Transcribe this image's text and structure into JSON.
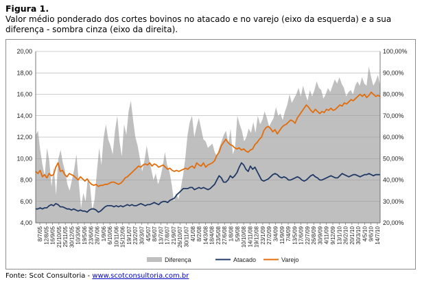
{
  "figure": {
    "title": "Figura 1.",
    "caption": "Valor médio ponderado dos cortes bovinos no atacado e no varejo (eixo da esquerda) e a sua diferença - sombra cinza (eixo da direita).",
    "source_prefix": "Fonte: Scot Consultoria - ",
    "source_link": "www.scotconsultoria.com.br"
  },
  "chart_data": {
    "type": "line",
    "y_left": {
      "ylim": [
        4,
        20
      ],
      "ticks": [
        "4,00",
        "6,00",
        "8,00",
        "10,00",
        "12,00",
        "14,00",
        "16,00",
        "18,00",
        "20,00"
      ]
    },
    "y_right": {
      "ylim": [
        20,
        100
      ],
      "ticks": [
        "20,00%",
        "30,00%",
        "40,00%",
        "50,00%",
        "60,00%",
        "70,00%",
        "80,00%",
        "90,00%",
        "100,00%"
      ]
    },
    "x_ticks": [
      "8/7/05",
      "12/8/05",
      "16/9/05",
      "21/10/05",
      "25/11/05",
      "30/12/05",
      "10/3/06",
      "19/5/06",
      "23/6/06",
      "28/7/06",
      "1/9/06",
      "6/10/06",
      "10/11/06",
      "15/12/06",
      "19/1/07",
      "23/2/07",
      "30/3/07",
      "4/5/07",
      "8/6/07",
      "13/7/07",
      "17/8/07",
      "21/9/07",
      "26/10/07",
      "30/11/07",
      "4/1/08",
      "8/2/08",
      "14/3/08",
      "18/4/08",
      "23/5/08",
      "27/6/08",
      "1/8/08",
      "5/9/08",
      "10/10/08",
      "14/11/08",
      "19/12/08",
      "23/1/09",
      "27/2/09",
      "3/4/09",
      "11/9/09",
      "7/4/09",
      "13/5/09",
      "17/6/09",
      "22/7/09",
      "26/8/09",
      "30/9/09",
      "4/11/09",
      "9/12/09",
      "13/1/10",
      "26/2/10",
      "20/1/10",
      "30/3/10",
      "4/5/10",
      "9/6/10",
      "14/7/10"
    ],
    "series": [
      {
        "name": "Diferença",
        "axis": "right",
        "color": "#bfbfbf",
        "style": "area",
        "values": [
          61,
          63,
          54,
          47,
          42,
          55,
          49,
          37,
          46,
          33,
          50,
          54,
          48,
          44,
          38,
          35,
          40,
          45,
          52,
          39,
          27,
          34,
          30,
          41,
          37,
          26,
          31,
          44,
          55,
          47,
          60,
          66,
          59,
          56,
          52,
          63,
          70,
          58,
          51,
          66,
          61,
          72,
          77,
          68,
          60,
          56,
          50,
          44,
          49,
          56,
          50,
          45,
          40,
          43,
          38,
          41,
          46,
          53,
          47,
          44,
          38,
          30,
          34,
          31,
          36,
          42,
          50,
          61,
          67,
          70,
          60,
          65,
          69,
          64,
          59,
          58,
          55,
          56,
          57,
          53,
          51,
          55,
          58,
          61,
          63,
          57,
          64,
          52,
          55,
          70,
          66,
          63,
          58,
          60,
          64,
          62,
          67,
          62,
          70,
          66,
          68,
          72,
          69,
          65,
          67,
          69,
          74,
          70,
          71,
          68,
          72,
          75,
          80,
          76,
          78,
          80,
          83,
          79,
          84,
          80,
          77,
          82,
          79,
          82,
          86,
          83,
          82,
          78,
          80,
          83,
          81,
          84,
          87,
          85,
          88,
          85,
          83,
          79,
          81,
          82,
          80,
          84,
          86,
          84,
          88,
          85,
          84,
          93,
          88,
          84,
          86,
          89,
          84
        ]
      },
      {
        "name": "Atacado",
        "axis": "left",
        "color": "#1f3864",
        "style": "line",
        "values": [
          5.3,
          5.3,
          5.4,
          5.3,
          5.4,
          5.4,
          5.6,
          5.7,
          5.6,
          5.8,
          5.7,
          5.5,
          5.5,
          5.4,
          5.3,
          5.3,
          5.2,
          5.3,
          5.2,
          5.1,
          5.2,
          5.1,
          5.1,
          5.0,
          5.2,
          5.3,
          5.3,
          5.2,
          5.0,
          5.1,
          5.3,
          5.5,
          5.6,
          5.6,
          5.6,
          5.5,
          5.6,
          5.5,
          5.6,
          5.5,
          5.6,
          5.7,
          5.6,
          5.7,
          5.6,
          5.6,
          5.7,
          5.8,
          5.7,
          5.6,
          5.7,
          5.7,
          5.8,
          5.9,
          5.8,
          5.7,
          5.9,
          6.0,
          6.0,
          5.9,
          6.1,
          6.2,
          6.3,
          6.6,
          6.8,
          7.0,
          7.2,
          7.2,
          7.2,
          7.3,
          7.3,
          7.1,
          7.2,
          7.3,
          7.2,
          7.3,
          7.2,
          7.1,
          7.2,
          7.4,
          7.6,
          8.0,
          8.4,
          8.2,
          7.8,
          7.8,
          8.0,
          8.4,
          8.2,
          8.4,
          8.7,
          9.2,
          9.6,
          9.4,
          9.0,
          8.8,
          9.3,
          9.0,
          9.2,
          8.8,
          8.4,
          8.0,
          7.9,
          8.0,
          8.1,
          8.3,
          8.5,
          8.6,
          8.5,
          8.3,
          8.2,
          8.3,
          8.2,
          8.0,
          8.0,
          8.1,
          8.2,
          8.3,
          8.2,
          8.0,
          7.9,
          8.0,
          8.2,
          8.4,
          8.5,
          8.3,
          8.2,
          8.0,
          8.0,
          8.1,
          8.2,
          8.3,
          8.4,
          8.3,
          8.2,
          8.2,
          8.4,
          8.6,
          8.5,
          8.4,
          8.3,
          8.4,
          8.5,
          8.5,
          8.4,
          8.3,
          8.4,
          8.5,
          8.5,
          8.6,
          8.5,
          8.4,
          8.5,
          8.5,
          8.5
        ]
      },
      {
        "name": "Varejo",
        "axis": "left",
        "color": "#e36c0a",
        "style": "line",
        "values": [
          8.8,
          8.6,
          8.9,
          8.3,
          8.5,
          8.2,
          8.6,
          8.4,
          8.5,
          9.2,
          9.6,
          8.8,
          8.9,
          8.5,
          8.3,
          8.6,
          8.5,
          8.4,
          8.2,
          8.0,
          8.3,
          8.1,
          7.9,
          8.1,
          7.8,
          7.6,
          7.5,
          7.6,
          7.4,
          7.5,
          7.5,
          7.6,
          7.6,
          7.7,
          7.8,
          7.8,
          7.7,
          7.6,
          7.7,
          7.9,
          8.2,
          8.3,
          8.5,
          8.7,
          8.9,
          9.1,
          9.3,
          9.2,
          9.4,
          9.5,
          9.4,
          9.6,
          9.3,
          9.5,
          9.4,
          9.2,
          9.3,
          9.4,
          9.2,
          9.0,
          9.1,
          8.9,
          8.8,
          8.9,
          8.8,
          8.9,
          9.0,
          9.1,
          9.0,
          9.2,
          9.3,
          9.1,
          9.6,
          9.4,
          9.3,
          9.6,
          9.2,
          9.4,
          9.5,
          9.6,
          9.8,
          10.3,
          10.6,
          11.2,
          11.5,
          11.8,
          11.5,
          11.3,
          11.2,
          11.0,
          10.9,
          11.0,
          10.8,
          10.9,
          10.7,
          10.6,
          10.8,
          10.9,
          11.3,
          11.5,
          11.8,
          12.0,
          12.6,
          12.9,
          13.0,
          12.8,
          12.5,
          12.7,
          12.3,
          12.6,
          12.9,
          13.1,
          13.2,
          13.4,
          13.6,
          13.5,
          13.3,
          13.8,
          14.1,
          14.4,
          14.7,
          15.0,
          14.8,
          14.5,
          14.3,
          14.6,
          14.4,
          14.2,
          14.4,
          14.3,
          14.6,
          14.5,
          14.7,
          14.5,
          14.6,
          14.8,
          15.0,
          14.9,
          15.2,
          15.1,
          15.3,
          15.5,
          15.4,
          15.6,
          15.8,
          16.0,
          15.8,
          16.0,
          15.7,
          15.9,
          16.2,
          16.0,
          15.8,
          15.9,
          15.8
        ]
      }
    ],
    "legend": {
      "placement": "bottom",
      "entries": [
        "Diferença",
        "Atacado",
        "Varejo"
      ]
    }
  }
}
